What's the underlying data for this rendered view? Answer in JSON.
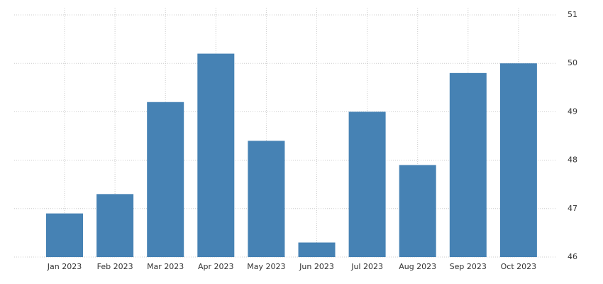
{
  "chart_data": {
    "type": "bar",
    "categories": [
      "Jan 2023",
      "Feb 2023",
      "Mar 2023",
      "Apr 2023",
      "May 2023",
      "Jun 2023",
      "Jul 2023",
      "Aug 2023",
      "Sep 2023",
      "Oct 2023"
    ],
    "values": [
      46.9,
      47.3,
      49.2,
      50.2,
      48.4,
      46.3,
      49.0,
      47.9,
      49.8,
      50.0
    ],
    "color": "#4682b4",
    "ylim": [
      46,
      51
    ],
    "yticks": [
      46,
      47,
      48,
      49,
      50,
      51
    ],
    "grid": true
  }
}
